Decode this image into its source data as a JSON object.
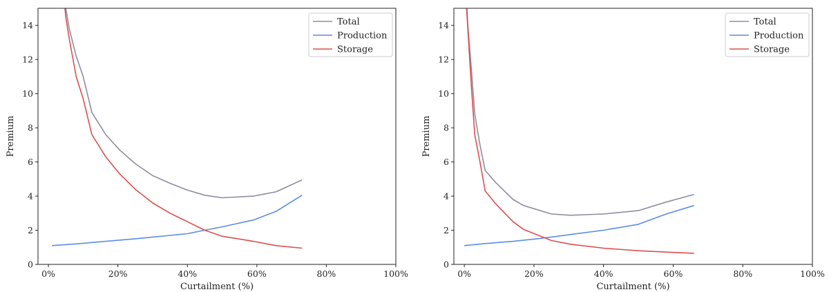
{
  "colors": {
    "Total": "#8f8ba0",
    "Production": "#5b8be6",
    "Storage": "#dc4e4e"
  },
  "chart_data": [
    {
      "type": "line",
      "xlabel": "Curtailment (%)",
      "ylabel": "Premium",
      "xlim": [
        -3,
        100
      ],
      "ylim": [
        0,
        15
      ],
      "xticks": [
        0,
        20,
        40,
        60,
        80,
        100
      ],
      "xtick_labels": [
        "0%",
        "20%",
        "40%",
        "60%",
        "80%",
        "100%"
      ],
      "yticks": [
        0,
        2,
        4,
        6,
        8,
        10,
        12,
        14
      ],
      "ytick_labels": [
        "0",
        "2",
        "4",
        "6",
        "8",
        "10",
        "12",
        "14"
      ],
      "legend": "top-right",
      "series": [
        {
          "name": "Total",
          "color": "#8f8ba0",
          "x": [
            4.5,
            5,
            6,
            8,
            10,
            12.5,
            16.5,
            20.5,
            25,
            30,
            35,
            40,
            45,
            50,
            59,
            65.5,
            73
          ],
          "y": [
            16.5,
            15.0,
            13.8,
            12.2,
            11.0,
            8.9,
            7.6,
            6.7,
            5.9,
            5.2,
            4.75,
            4.35,
            4.05,
            3.9,
            4.0,
            4.25,
            4.95
          ]
        },
        {
          "name": "Production",
          "color": "#5b8be6",
          "x": [
            1,
            8,
            16.5,
            25,
            30,
            35,
            40,
            45,
            50,
            59,
            65.5,
            73
          ],
          "y": [
            1.1,
            1.2,
            1.35,
            1.5,
            1.6,
            1.7,
            1.8,
            2.0,
            2.2,
            2.6,
            3.1,
            4.05
          ]
        },
        {
          "name": "Storage",
          "color": "#dc4e4e",
          "x": [
            4.5,
            5,
            6,
            8,
            10,
            12.5,
            16.5,
            20.5,
            25,
            30,
            35,
            40,
            45,
            50,
            59,
            65.5,
            73
          ],
          "y": [
            15.5,
            14.5,
            13.2,
            11.0,
            9.7,
            7.6,
            6.3,
            5.3,
            4.4,
            3.6,
            3.0,
            2.5,
            2.0,
            1.65,
            1.35,
            1.1,
            0.95
          ]
        }
      ]
    },
    {
      "type": "line",
      "xlabel": "Curtailment (%)",
      "ylabel": "Premium",
      "xlim": [
        -3,
        100
      ],
      "ylim": [
        0,
        15
      ],
      "xticks": [
        0,
        20,
        40,
        60,
        80,
        100
      ],
      "xtick_labels": [
        "0%",
        "20%",
        "40%",
        "60%",
        "80%",
        "100%"
      ],
      "yticks": [
        0,
        2,
        4,
        6,
        8,
        10,
        12,
        14
      ],
      "ytick_labels": [
        "0",
        "2",
        "4",
        "6",
        "8",
        "10",
        "12",
        "14"
      ],
      "legend": "top-right",
      "series": [
        {
          "name": "Total",
          "color": "#8f8ba0",
          "x": [
            0.5,
            1,
            2,
            3,
            4.5,
            6,
            9,
            14,
            17,
            25,
            30.5,
            40,
            50,
            58,
            66
          ],
          "y": [
            16.0,
            14.0,
            11.5,
            8.8,
            7.0,
            5.5,
            4.8,
            3.8,
            3.45,
            2.95,
            2.88,
            2.95,
            3.15,
            3.65,
            4.1
          ]
        },
        {
          "name": "Production",
          "color": "#5b8be6",
          "x": [
            0,
            6,
            14,
            20,
            25,
            30.5,
            40,
            50,
            58,
            66
          ],
          "y": [
            1.1,
            1.22,
            1.35,
            1.48,
            1.6,
            1.75,
            2.0,
            2.35,
            2.95,
            3.45
          ]
        },
        {
          "name": "Storage",
          "color": "#dc4e4e",
          "x": [
            0.5,
            1,
            2,
            3,
            4.5,
            6,
            9,
            14,
            17,
            25,
            30.5,
            40,
            50,
            58,
            66
          ],
          "y": [
            15.5,
            13.8,
            10.5,
            7.6,
            6.0,
            4.3,
            3.55,
            2.5,
            2.05,
            1.4,
            1.18,
            0.95,
            0.8,
            0.72,
            0.65
          ]
        }
      ]
    }
  ]
}
